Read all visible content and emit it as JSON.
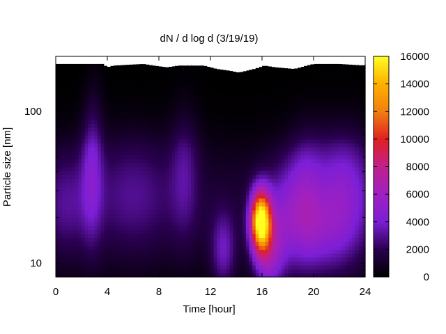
{
  "chart_data": {
    "type": "heatmap",
    "title": "dN / d log d (3/19/19)",
    "xlabel": "Time [hour]",
    "ylabel": "Particle size [nm]",
    "x_range": [
      0,
      24
    ],
    "x_ticks": [
      0,
      4,
      8,
      12,
      16,
      20,
      24
    ],
    "y_scale": "log",
    "y_range": [
      8.1,
      230
    ],
    "y_ticks": [
      10,
      100
    ],
    "grid": false,
    "colormap": "gnuplot-black-purple-red-yellow",
    "colormap_stops": [
      "#000000",
      "#2a0050",
      "#7b1fd6",
      "#a020c0",
      "#c0208a",
      "#e02020",
      "#f08010",
      "#ffb000",
      "#ffff20"
    ],
    "colorbar": {
      "range": [
        0,
        16000
      ],
      "ticks": [
        0,
        2000,
        4000,
        6000,
        8000,
        10000,
        12000,
        14000,
        16000
      ]
    },
    "background_level": 1200,
    "upper_cutoff_nm": [
      [
        0,
        205
      ],
      [
        3.7,
        205
      ],
      [
        4.0,
        195
      ],
      [
        4.5,
        200
      ],
      [
        6.8,
        205
      ],
      [
        7.6,
        200
      ],
      [
        8.6,
        195
      ],
      [
        9.6,
        200
      ],
      [
        11.5,
        200
      ],
      [
        12.5,
        190
      ],
      [
        13.5,
        185
      ],
      [
        14.2,
        180
      ],
      [
        15.4,
        190
      ],
      [
        16.2,
        200
      ],
      [
        17.0,
        195
      ],
      [
        18.5,
        190
      ],
      [
        20.0,
        205
      ],
      [
        22.0,
        205
      ],
      [
        24.0,
        200
      ]
    ],
    "features": [
      {
        "center_hour": 2.8,
        "center_nm": 42,
        "hour_spread": 0.6,
        "log_spread": 0.35,
        "value": 2800
      },
      {
        "center_hour": 3.0,
        "center_nm": 150,
        "hour_spread": 0.5,
        "log_spread": 0.25,
        "value": 1200
      },
      {
        "center_hour": 0.8,
        "center_nm": 25,
        "hour_spread": 1.2,
        "log_spread": 0.25,
        "value": 1800
      },
      {
        "center_hour": 6.0,
        "center_nm": 30,
        "hour_spread": 2.2,
        "log_spread": 0.3,
        "value": 1800
      },
      {
        "center_hour": 10.0,
        "center_nm": 45,
        "hour_spread": 0.8,
        "log_spread": 0.35,
        "value": 2000
      },
      {
        "center_hour": 13.0,
        "center_nm": 12,
        "hour_spread": 0.7,
        "log_spread": 0.18,
        "value": 3000
      },
      {
        "center_hour": 15.9,
        "center_nm": 19,
        "hour_spread": 0.55,
        "log_spread": 0.14,
        "value": 15500
      },
      {
        "center_hour": 16.5,
        "center_nm": 11,
        "hour_spread": 0.8,
        "log_spread": 0.18,
        "value": 4000
      },
      {
        "center_hour": 17.5,
        "center_nm": 20,
        "hour_spread": 1.0,
        "log_spread": 0.25,
        "value": 2500
      },
      {
        "center_hour": 19.3,
        "center_nm": 28,
        "hour_spread": 1.0,
        "log_spread": 0.3,
        "value": 3200
      },
      {
        "center_hour": 22.3,
        "center_nm": 30,
        "hour_spread": 1.6,
        "log_spread": 0.3,
        "value": 3600
      },
      {
        "center_hour": 20.5,
        "center_nm": 15,
        "hour_spread": 1.8,
        "log_spread": 0.2,
        "value": 2200
      }
    ]
  }
}
